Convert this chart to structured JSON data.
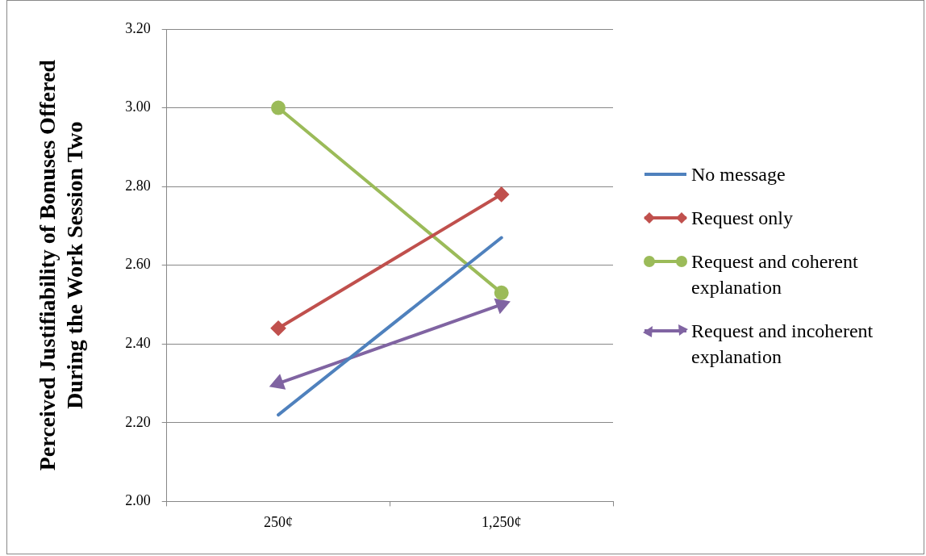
{
  "chart_data": {
    "type": "line",
    "ylabel": "Perceived Justifiability of Bonuses Offered During the Work Session Two",
    "categories": [
      "250¢",
      "1,250¢"
    ],
    "series": [
      {
        "name": "No message",
        "color": "#4f81bd",
        "values": [
          2.22,
          2.67
        ],
        "marker": "none"
      },
      {
        "name": "Request only",
        "color": "#c0504d",
        "values": [
          2.44,
          2.78
        ],
        "marker": "diamond"
      },
      {
        "name": "Request and coherent explanation",
        "color": "#9bbb59",
        "values": [
          3.0,
          2.53
        ],
        "marker": "circle"
      },
      {
        "name": "Request and incoherent explanation",
        "color": "#8064a2",
        "values": [
          2.3,
          2.5
        ],
        "marker": "triangle"
      }
    ],
    "ylim": [
      2.0,
      3.2
    ],
    "yticks": [
      {
        "value": 2.0,
        "label": "2.00"
      },
      {
        "value": 2.2,
        "label": "2.20"
      },
      {
        "value": 2.4,
        "label": "2.40"
      },
      {
        "value": 2.6,
        "label": "2.60"
      },
      {
        "value": 2.8,
        "label": "2.80"
      },
      {
        "value": 3.0,
        "label": "3.00"
      },
      {
        "value": 3.2,
        "label": "3.20"
      }
    ],
    "grid": "y",
    "legend": "right",
    "line_style": "solid"
  }
}
